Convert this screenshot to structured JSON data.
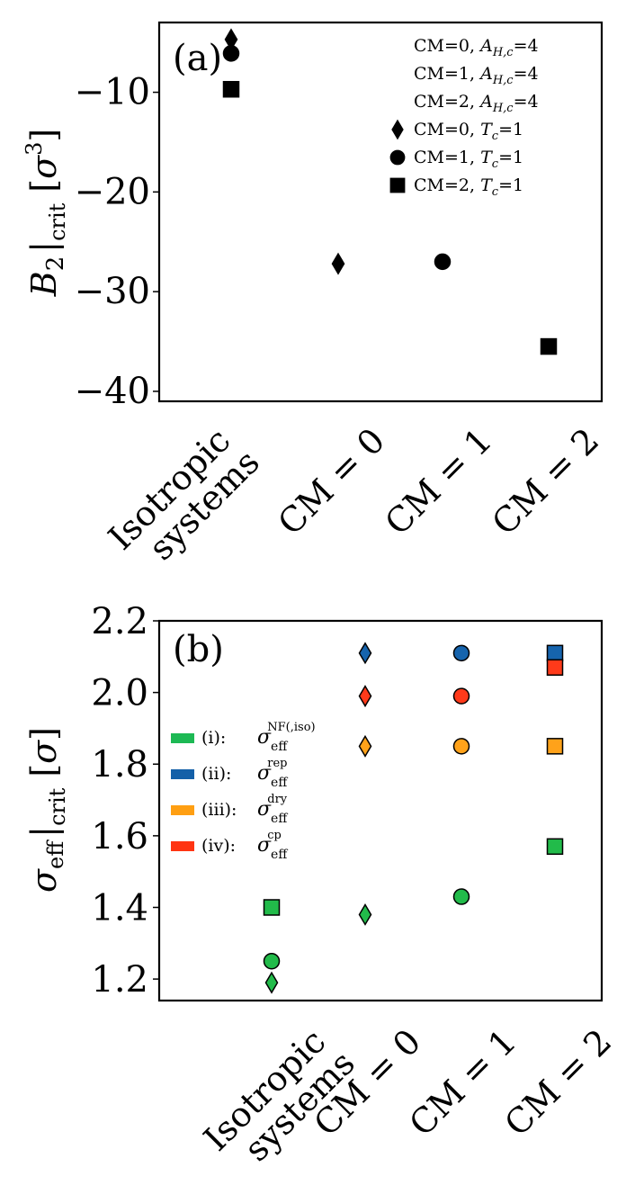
{
  "chart_data": [
    {
      "type": "scatter",
      "panel_label": "(a)",
      "ylabel_main": "B",
      "ylabel_sub": "2",
      "ylabel_crit": "crit",
      "ylabel_unit_open": "[",
      "ylabel_unit": "σ",
      "ylabel_unit_sup": "3",
      "ylabel_unit_close": "]",
      "ylim": [
        -41,
        -3
      ],
      "yticks": [
        -10,
        -20,
        -30,
        -40
      ],
      "ytick_labels": [
        "−10",
        "−20",
        "−30",
        "−40"
      ],
      "categories": [
        {
          "lines": [
            "Isotropic",
            "systems"
          ]
        },
        {
          "lines": [
            "CM = 0"
          ]
        },
        {
          "lines": [
            "CM = 1"
          ]
        },
        {
          "lines": [
            "CM = 2"
          ]
        }
      ],
      "x_positions": [
        0,
        1,
        2,
        3
      ],
      "legend_position": "top-right",
      "series": [
        {
          "name": "CM=0, A_{H,c}=4",
          "legend_text": "CM=0, ",
          "legend_sym": "A",
          "legend_sub": "H,c",
          "legend_tail": "=4",
          "marker": "none",
          "points": []
        },
        {
          "name": "CM=1, A_{H,c}=4",
          "legend_text": "CM=1, ",
          "legend_sym": "A",
          "legend_sub": "H,c",
          "legend_tail": "=4",
          "marker": "none",
          "points": []
        },
        {
          "name": "CM=2, A_{H,c}=4",
          "legend_text": "CM=2, ",
          "legend_sym": "A",
          "legend_sub": "H,c",
          "legend_tail": "=4",
          "marker": "none",
          "points": []
        },
        {
          "name": "CM=0, T_c=1",
          "legend_text": "CM=0, ",
          "legend_sym": "T",
          "legend_sub": "c",
          "legend_tail": "=1",
          "marker": "diamond",
          "color": "#000000",
          "points": [
            {
              "x": 0,
              "y": -4.7
            },
            {
              "x": 1,
              "y": -27.2
            }
          ]
        },
        {
          "name": "CM=1, T_c=1",
          "legend_text": "CM=1, ",
          "legend_sym": "T",
          "legend_sub": "c",
          "legend_tail": "=1",
          "marker": "circle",
          "color": "#000000",
          "points": [
            {
              "x": 0,
              "y": -6.1
            },
            {
              "x": 2,
              "y": -27.0
            }
          ]
        },
        {
          "name": "CM=2, T_c=1",
          "legend_text": "CM=2, ",
          "legend_sym": "T",
          "legend_sub": "c",
          "legend_tail": "=1",
          "marker": "square",
          "color": "#000000",
          "points": [
            {
              "x": 0,
              "y": -9.7
            },
            {
              "x": 3,
              "y": -35.5
            }
          ]
        }
      ]
    },
    {
      "type": "scatter",
      "panel_label": "(b)",
      "ylabel_main": "σ",
      "ylabel_sub": "eff",
      "ylabel_crit": "crit",
      "ylabel_unit_open": "[",
      "ylabel_unit": "σ",
      "ylabel_unit_close": "]",
      "ylim": [
        1.14,
        2.2
      ],
      "yticks": [
        1.2,
        1.4,
        1.6,
        1.8,
        2.0,
        2.2
      ],
      "ytick_labels": [
        "1.2",
        "1.4",
        "1.6",
        "1.8",
        "2.0",
        "2.2"
      ],
      "categories": [
        {
          "lines": [
            "Isotropic",
            "systems"
          ]
        },
        {
          "lines": [
            "CM = 0"
          ]
        },
        {
          "lines": [
            "CM = 1"
          ]
        },
        {
          "lines": [
            "CM = 2"
          ]
        }
      ],
      "x_positions": [
        0,
        1,
        2,
        3
      ],
      "legend_position": "left",
      "legend": [
        {
          "label": "(i):",
          "sym": "σ",
          "sub": "eff",
          "sup": "NF(,iso)",
          "color": "#1db954"
        },
        {
          "label": "(ii):",
          "sym": "σ",
          "sub": "eff",
          "sup": "rep",
          "color": "#1460a8"
        },
        {
          "label": "(iii):",
          "sym": "σ",
          "sub": "eff",
          "sup": "dry",
          "color": "#ff9f12"
        },
        {
          "label": "(iv):",
          "sym": "σ",
          "sub": "eff",
          "sup": "cp",
          "color": "#ff3412"
        }
      ],
      "marker_by_category": {
        "CM=0": "diamond",
        "CM=1": "circle",
        "CM=2": "square"
      },
      "series": [
        {
          "name": "(i)",
          "color": "#22bb4a",
          "points": [
            {
              "x": 0,
              "y": 1.4,
              "marker": "square"
            },
            {
              "x": 0,
              "y": 1.25,
              "marker": "circle"
            },
            {
              "x": 0,
              "y": 1.19,
              "marker": "diamond"
            },
            {
              "x": 1,
              "y": 1.38,
              "marker": "diamond"
            },
            {
              "x": 2,
              "y": 1.43,
              "marker": "circle"
            },
            {
              "x": 3,
              "y": 1.57,
              "marker": "square"
            }
          ]
        },
        {
          "name": "(ii)",
          "color": "#1664ad",
          "points": [
            {
              "x": 1,
              "y": 2.11,
              "marker": "diamond"
            },
            {
              "x": 2,
              "y": 2.11,
              "marker": "circle"
            },
            {
              "x": 3,
              "y": 2.11,
              "marker": "square"
            }
          ]
        },
        {
          "name": "(iii)",
          "color": "#ffa21a",
          "points": [
            {
              "x": 1,
              "y": 1.85,
              "marker": "diamond"
            },
            {
              "x": 2,
              "y": 1.85,
              "marker": "circle"
            },
            {
              "x": 3,
              "y": 1.85,
              "marker": "square"
            }
          ]
        },
        {
          "name": "(iv)",
          "color": "#ff3a1a",
          "points": [
            {
              "x": 1,
              "y": 1.99,
              "marker": "diamond"
            },
            {
              "x": 2,
              "y": 1.99,
              "marker": "circle"
            },
            {
              "x": 3,
              "y": 2.07,
              "marker": "square"
            }
          ]
        }
      ]
    }
  ]
}
